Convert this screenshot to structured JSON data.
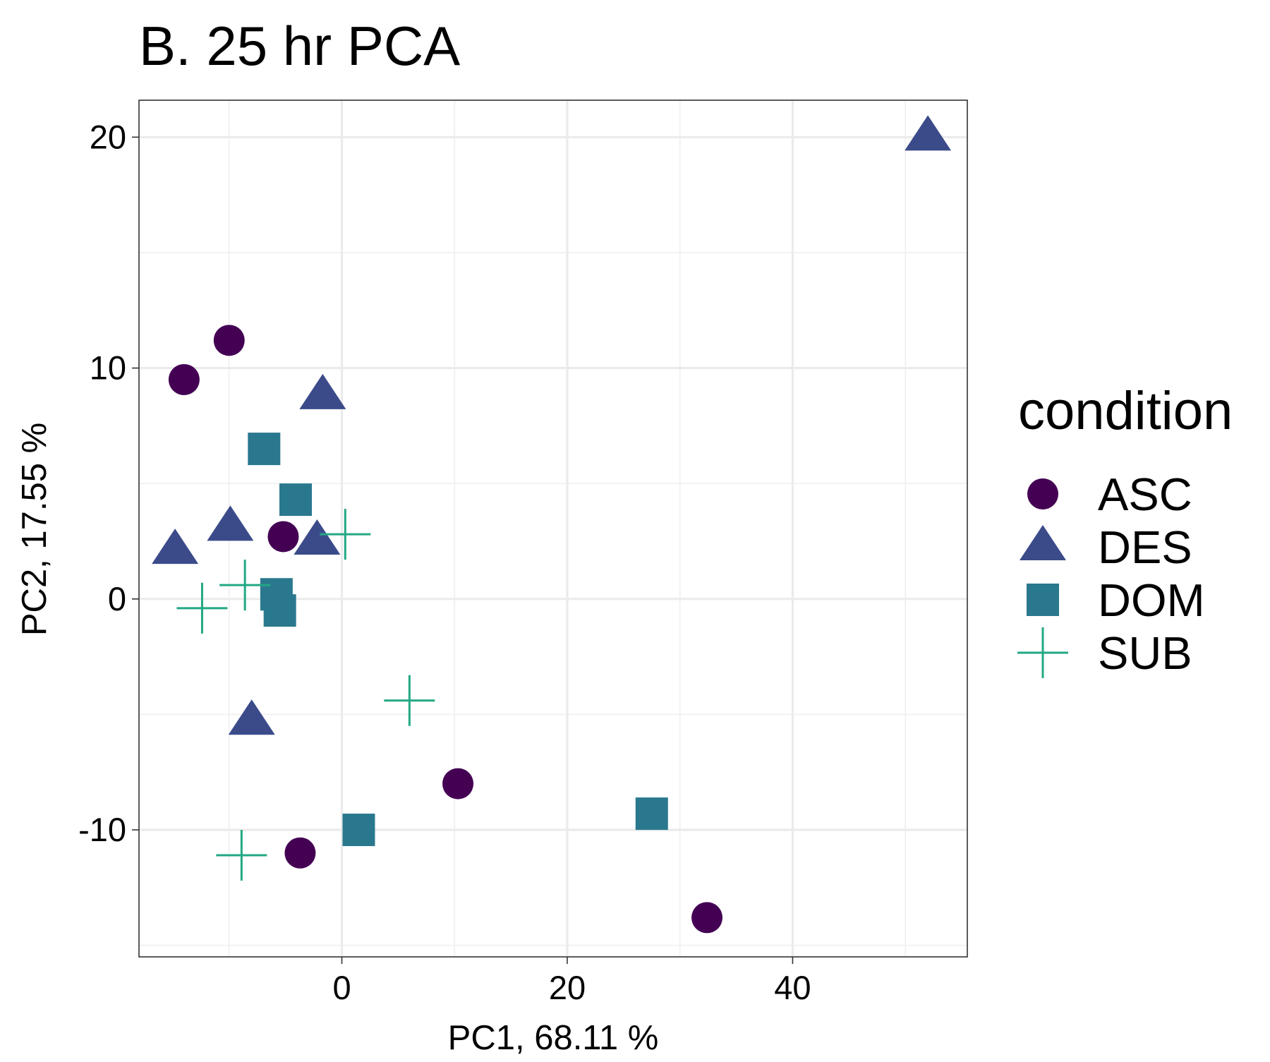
{
  "chart_data": {
    "type": "scatter",
    "title": "B. 25 hr PCA",
    "xlabel": "PC1,  68.11 %",
    "ylabel": "PC2,  17.55 %",
    "xlim": [
      -18,
      55.5
    ],
    "ylim": [
      -15.5,
      21.6
    ],
    "x_ticks": [
      0,
      20,
      40
    ],
    "y_ticks": [
      -10,
      0,
      10,
      20
    ],
    "x_tick_labels": [
      "0",
      "20",
      "40"
    ],
    "y_tick_labels": [
      "-10",
      "0",
      "10",
      "20"
    ],
    "grid": true,
    "legend": {
      "title": "condition",
      "position": "right"
    },
    "series": [
      {
        "name": "ASC",
        "marker": "circle",
        "color": "#440154",
        "points": [
          [
            -10.0,
            11.2
          ],
          [
            -14.0,
            9.5
          ],
          [
            -5.2,
            2.7
          ],
          [
            10.3,
            -8.0
          ],
          [
            -3.7,
            -11.0
          ],
          [
            32.4,
            -13.8
          ]
        ]
      },
      {
        "name": "DES",
        "marker": "triangle",
        "color": "#3B4B8A",
        "points": [
          [
            52.0,
            20.0
          ],
          [
            -1.7,
            8.8
          ],
          [
            -9.9,
            3.1
          ],
          [
            -14.8,
            2.1
          ],
          [
            -2.2,
            2.5
          ],
          [
            -8.0,
            -5.3
          ]
        ]
      },
      {
        "name": "DOM",
        "marker": "square",
        "color": "#2A788E",
        "points": [
          [
            -6.9,
            6.5
          ],
          [
            -4.1,
            4.3
          ],
          [
            -5.8,
            0.2
          ],
          [
            -5.5,
            -0.5
          ],
          [
            1.5,
            -10.0
          ],
          [
            27.5,
            -9.3
          ]
        ]
      },
      {
        "name": "SUB",
        "marker": "plus",
        "color": "#22A884",
        "points": [
          [
            0.3,
            2.8
          ],
          [
            -8.6,
            0.6
          ],
          [
            -12.4,
            -0.4
          ],
          [
            6.0,
            -4.4
          ],
          [
            -8.9,
            -11.1
          ]
        ]
      }
    ]
  }
}
